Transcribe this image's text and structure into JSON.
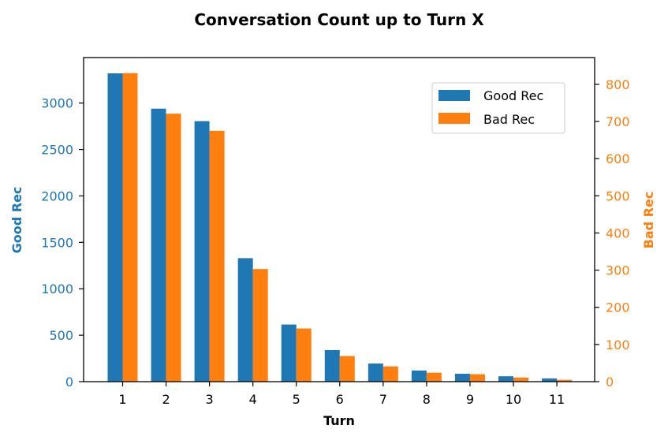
{
  "chart_data": {
    "type": "bar",
    "title": "Conversation Count up to Turn X",
    "xlabel": "Turn",
    "ylabel_left": "Good Rec",
    "ylabel_right": "Bad Rec",
    "categories": [
      "1",
      "2",
      "3",
      "4",
      "5",
      "6",
      "7",
      "8",
      "9",
      "10",
      "11"
    ],
    "series": [
      {
        "name": "Good Rec",
        "axis": "left",
        "color": "#1f77b4",
        "values": [
          3320,
          2940,
          2805,
          1330,
          615,
          340,
          195,
          120,
          85,
          58,
          35
        ]
      },
      {
        "name": "Bad Rec",
        "axis": "right",
        "color": "#ff7f0e",
        "values": [
          830,
          721,
          675,
          303,
          143,
          69,
          41,
          24,
          20,
          11,
          5
        ]
      }
    ],
    "ylim_left": [
      0,
      3490
    ],
    "ylim_right": [
      0,
      872
    ],
    "yticks_left": [
      0,
      500,
      1000,
      1500,
      2000,
      2500,
      3000
    ],
    "yticks_right": [
      0,
      100,
      200,
      300,
      400,
      500,
      600,
      700,
      800
    ],
    "legend_position": "upper right",
    "grid": false
  }
}
